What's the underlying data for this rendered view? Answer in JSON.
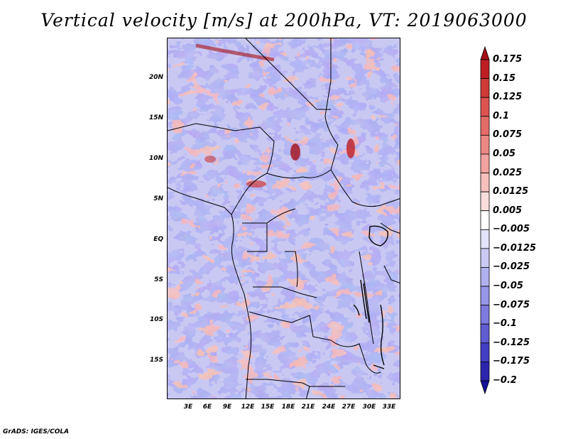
{
  "title": "Vertical velocity [m/s] at 200hPa, VT: 2019063000",
  "footer": "GrADS: IGES/COLA",
  "axes": {
    "y_labels": [
      "20N",
      "15N",
      "10N",
      "5N",
      "EQ",
      "5S",
      "10S",
      "15S"
    ],
    "x_labels": [
      "3E",
      "6E",
      "9E",
      "12E",
      "15E",
      "18E",
      "21E",
      "24E",
      "27E",
      "30E",
      "33E"
    ]
  },
  "colorbar": {
    "labels": [
      "0.175",
      "0.15",
      "0.125",
      "0.1",
      "0.075",
      "0.05",
      "0.025",
      "0.0125",
      "0.005",
      "−0.005",
      "−0.0125",
      "−0.025",
      "−0.05",
      "−0.075",
      "−0.1",
      "−0.125",
      "−0.175",
      "−0.2"
    ],
    "colors": [
      "#a50f15",
      "#be1e23",
      "#cf3a37",
      "#dc5350",
      "#e46c68",
      "#ec8883",
      "#f2a39f",
      "#f7c0bd",
      "#fbdedc",
      "#ffffff",
      "#e4e4fb",
      "#cacaf5",
      "#b1b0ef",
      "#9896e8",
      "#7d7ade",
      "#605dd2",
      "#4440c3",
      "#2b25ad",
      "#140f96"
    ]
  }
}
